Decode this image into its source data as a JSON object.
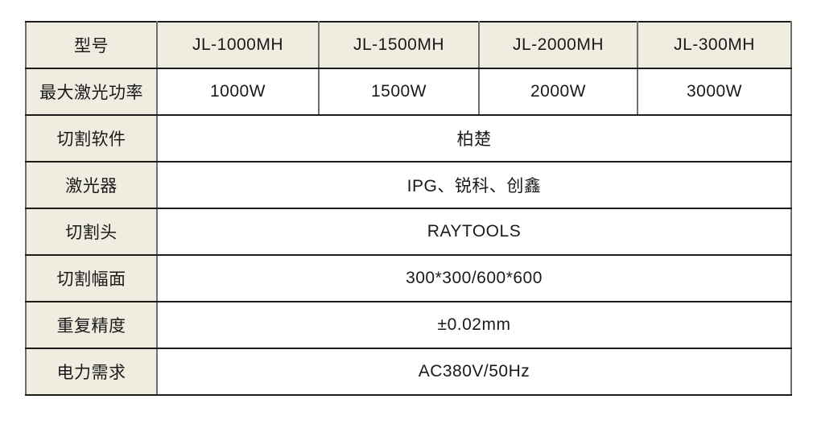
{
  "table": {
    "rows": [
      {
        "label": "型号",
        "type": "header",
        "values": [
          "JL-1000MH",
          "JL-1500MH",
          "JL-2000MH",
          "JL-300MH"
        ]
      },
      {
        "label": "最大激光功率",
        "type": "data",
        "values": [
          "1000W",
          "1500W",
          "2000W",
          "3000W"
        ]
      },
      {
        "label": "切割软件",
        "type": "merged",
        "value": "柏楚"
      },
      {
        "label": "激光器",
        "type": "merged",
        "value": "IPG、锐科、创鑫"
      },
      {
        "label": "切割头",
        "type": "merged",
        "value": "RAYTOOLS"
      },
      {
        "label": "切割幅面",
        "type": "merged",
        "value": "300*300/600*600"
      },
      {
        "label": "重复精度",
        "type": "merged",
        "value": "±0.02mm"
      },
      {
        "label": "电力需求",
        "type": "merged",
        "value": "AC380V/50Hz"
      }
    ],
    "colors": {
      "header_bg": "#efece0",
      "cell_bg": "#ffffff",
      "border_horizontal": "#1c1c1c",
      "border_vertical": "#6e6e6e",
      "text": "#1a1a1a"
    }
  }
}
